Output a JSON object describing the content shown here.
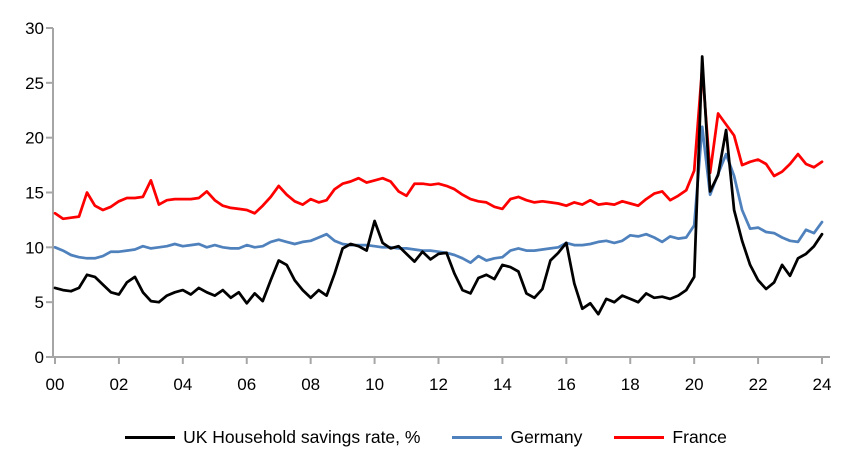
{
  "chart_data": {
    "type": "line",
    "title": "",
    "grid": false,
    "legend_position": "bottom",
    "background_color": "#ffffff",
    "axis_color": "#A6A6A6",
    "tick_label_color": "#000000",
    "x_axis": {
      "frequency": "quarterly",
      "start": "2000Q1",
      "end": "2024Q1",
      "tick_labels": [
        "00",
        "02",
        "04",
        "06",
        "08",
        "10",
        "12",
        "14",
        "16",
        "18",
        "20",
        "22",
        "24"
      ]
    },
    "y_axis": {
      "min": 0,
      "max": 30,
      "tick_interval": 5,
      "tick_labels": [
        "0",
        "5",
        "10",
        "15",
        "20",
        "25",
        "30"
      ]
    },
    "series": [
      {
        "name": "UK Household savings rate, %",
        "color": "#000000",
        "values": [
          6.3,
          6.1,
          6.0,
          6.3,
          7.5,
          7.3,
          6.6,
          5.9,
          5.7,
          6.8,
          7.3,
          5.9,
          5.1,
          5.0,
          5.6,
          5.9,
          6.1,
          5.7,
          6.3,
          5.9,
          5.6,
          6.1,
          5.4,
          5.9,
          4.9,
          5.8,
          5.1,
          7.0,
          8.8,
          8.4,
          7.0,
          6.1,
          5.4,
          6.1,
          5.6,
          7.6,
          9.9,
          10.3,
          10.1,
          9.7,
          12.4,
          10.4,
          9.9,
          10.1,
          9.4,
          8.7,
          9.6,
          8.9,
          9.4,
          9.5,
          7.6,
          6.1,
          5.8,
          7.2,
          7.5,
          7.1,
          8.4,
          8.2,
          7.8,
          5.8,
          5.4,
          6.2,
          8.8,
          9.5,
          10.4,
          6.7,
          4.4,
          4.9,
          3.9,
          5.3,
          5.0,
          5.6,
          5.3,
          5.0,
          5.8,
          5.4,
          5.5,
          5.3,
          5.6,
          6.1,
          7.3,
          27.4,
          15.1,
          16.6,
          20.7,
          13.4,
          10.6,
          8.4,
          7.0,
          6.2,
          6.8,
          8.4,
          7.4,
          9.0,
          9.4,
          10.1,
          11.2
        ]
      },
      {
        "name": "Germany",
        "color": "#4F81BD",
        "values": [
          10.0,
          9.7,
          9.3,
          9.1,
          9.0,
          9.0,
          9.2,
          9.6,
          9.6,
          9.7,
          9.8,
          10.1,
          9.9,
          10.0,
          10.1,
          10.3,
          10.1,
          10.2,
          10.3,
          10.0,
          10.2,
          10.0,
          9.9,
          9.9,
          10.2,
          10.0,
          10.1,
          10.5,
          10.7,
          10.5,
          10.3,
          10.5,
          10.6,
          10.9,
          11.2,
          10.6,
          10.3,
          10.2,
          10.2,
          10.2,
          10.1,
          10.0,
          10.0,
          9.9,
          9.9,
          9.8,
          9.7,
          9.7,
          9.6,
          9.5,
          9.3,
          9.0,
          8.6,
          9.2,
          8.8,
          9.0,
          9.1,
          9.7,
          9.9,
          9.7,
          9.7,
          9.8,
          9.9,
          10.0,
          10.4,
          10.2,
          10.2,
          10.3,
          10.5,
          10.6,
          10.4,
          10.6,
          11.1,
          11.0,
          11.2,
          10.9,
          10.5,
          11.0,
          10.8,
          10.9,
          12.0,
          21.0,
          14.8,
          16.7,
          18.5,
          16.5,
          13.4,
          11.7,
          11.8,
          11.4,
          11.3,
          10.9,
          10.6,
          10.5,
          11.6,
          11.3,
          12.3
        ]
      },
      {
        "name": "France",
        "color": "#FF0000",
        "values": [
          13.1,
          12.6,
          12.7,
          12.8,
          15.0,
          13.8,
          13.4,
          13.7,
          14.2,
          14.5,
          14.5,
          14.6,
          16.1,
          13.9,
          14.3,
          14.4,
          14.4,
          14.4,
          14.5,
          15.1,
          14.3,
          13.8,
          13.6,
          13.5,
          13.4,
          13.1,
          13.8,
          14.6,
          15.6,
          14.8,
          14.2,
          13.9,
          14.4,
          14.1,
          14.3,
          15.3,
          15.8,
          16.0,
          16.3,
          15.9,
          16.1,
          16.3,
          16.0,
          15.1,
          14.7,
          15.8,
          15.8,
          15.7,
          15.8,
          15.6,
          15.3,
          14.8,
          14.4,
          14.2,
          14.1,
          13.7,
          13.5,
          14.4,
          14.6,
          14.3,
          14.1,
          14.2,
          14.1,
          14.0,
          13.8,
          14.1,
          13.9,
          14.3,
          13.9,
          14.0,
          13.9,
          14.2,
          14.0,
          13.8,
          14.4,
          14.9,
          15.1,
          14.3,
          14.7,
          15.2,
          17.0,
          26.4,
          16.8,
          22.2,
          21.2,
          20.2,
          17.5,
          17.8,
          18.0,
          17.6,
          16.5,
          16.9,
          17.6,
          18.5,
          17.6,
          17.3,
          17.8
        ]
      }
    ]
  }
}
